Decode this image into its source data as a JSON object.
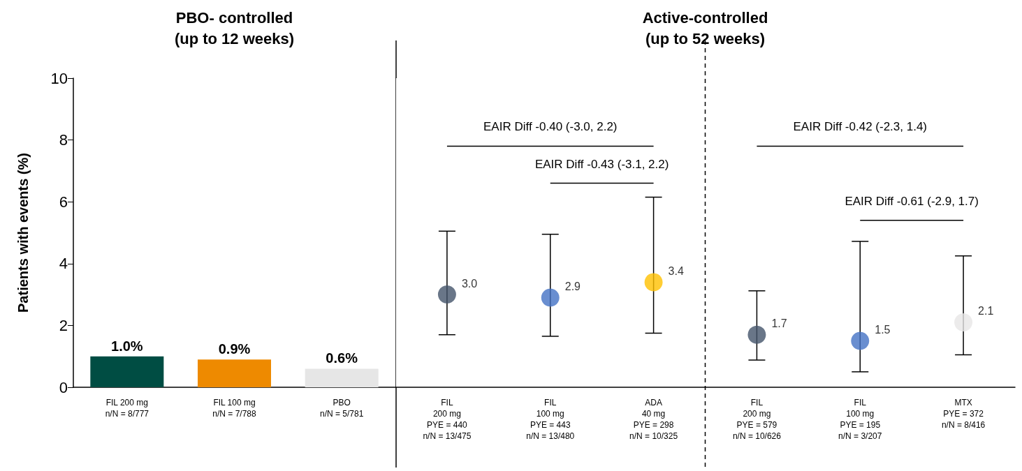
{
  "chart_data": [
    {
      "type": "bar",
      "ylabel": "Patients with events (%)",
      "categories": [
        "FIL 200 mg\nn/N = 8/777",
        "FIL 100 mg\nn/N = 7/788",
        "PBO\nn/N = 5/781"
      ],
      "colors": [
        "#004d43",
        "#ee8a00",
        "#e6e6e6"
      ],
      "values": [
        1.0,
        0.9,
        0.6
      ],
      "value_labels": [
        "1.0%",
        "0.9%",
        "0.6%"
      ],
      "ylim": [
        0,
        10
      ],
      "yticks": [
        0,
        2,
        4,
        6,
        8,
        10
      ],
      "annotations": [
        "PBO- controlled\n(up to 12 weeks)"
      ]
    },
    {
      "type": "scatter",
      "marker": "circle",
      "categories": [
        "FIL\n200 mg\nPYE = 440\nn/N = 13/475",
        "FIL\n100 mg\nPYE = 443\nn/N = 13/480",
        "ADA\n40 mg\nPYE = 298\nn/N = 10/325",
        "FIL\n200 mg\nPYE = 579\nn/N = 10/626",
        "FIL\n100 mg\nPYE = 195\nn/N = 3/207",
        "MTX\nPYE = 372\nn/N = 8/416"
      ],
      "colors": [
        "#44546a",
        "#4472c4",
        "#ffc000",
        "#44546a",
        "#4472c4",
        "#e7e6e6"
      ],
      "values": [
        3.0,
        2.9,
        3.4,
        1.7,
        1.5,
        2.1
      ],
      "value_labels": [
        "3.0",
        "2.9",
        "3.4",
        "1.7",
        "1.5",
        "2.1"
      ],
      "errors": [
        [
          1.7,
          5.05
        ],
        [
          1.65,
          4.95
        ],
        [
          1.75,
          6.15
        ],
        [
          0.88,
          3.12
        ],
        [
          0.5,
          4.72
        ],
        [
          1.05,
          4.25
        ]
      ],
      "ylim": [
        0,
        10
      ],
      "yticks": [
        0,
        2,
        4,
        6,
        8,
        10
      ],
      "tick_labels": "x",
      "annotations": [
        "Active-controlled\n(up to 52 weeks)",
        "EAIR Diff -0.40 (-3.0, 2.2)",
        "EAIR Diff -0.43 (-3.1, 2.2)",
        "EAIR Diff -0.42 (-2.3, 1.4)",
        "EAIR Diff -0.61 (-2.9, 1.7)"
      ]
    }
  ]
}
